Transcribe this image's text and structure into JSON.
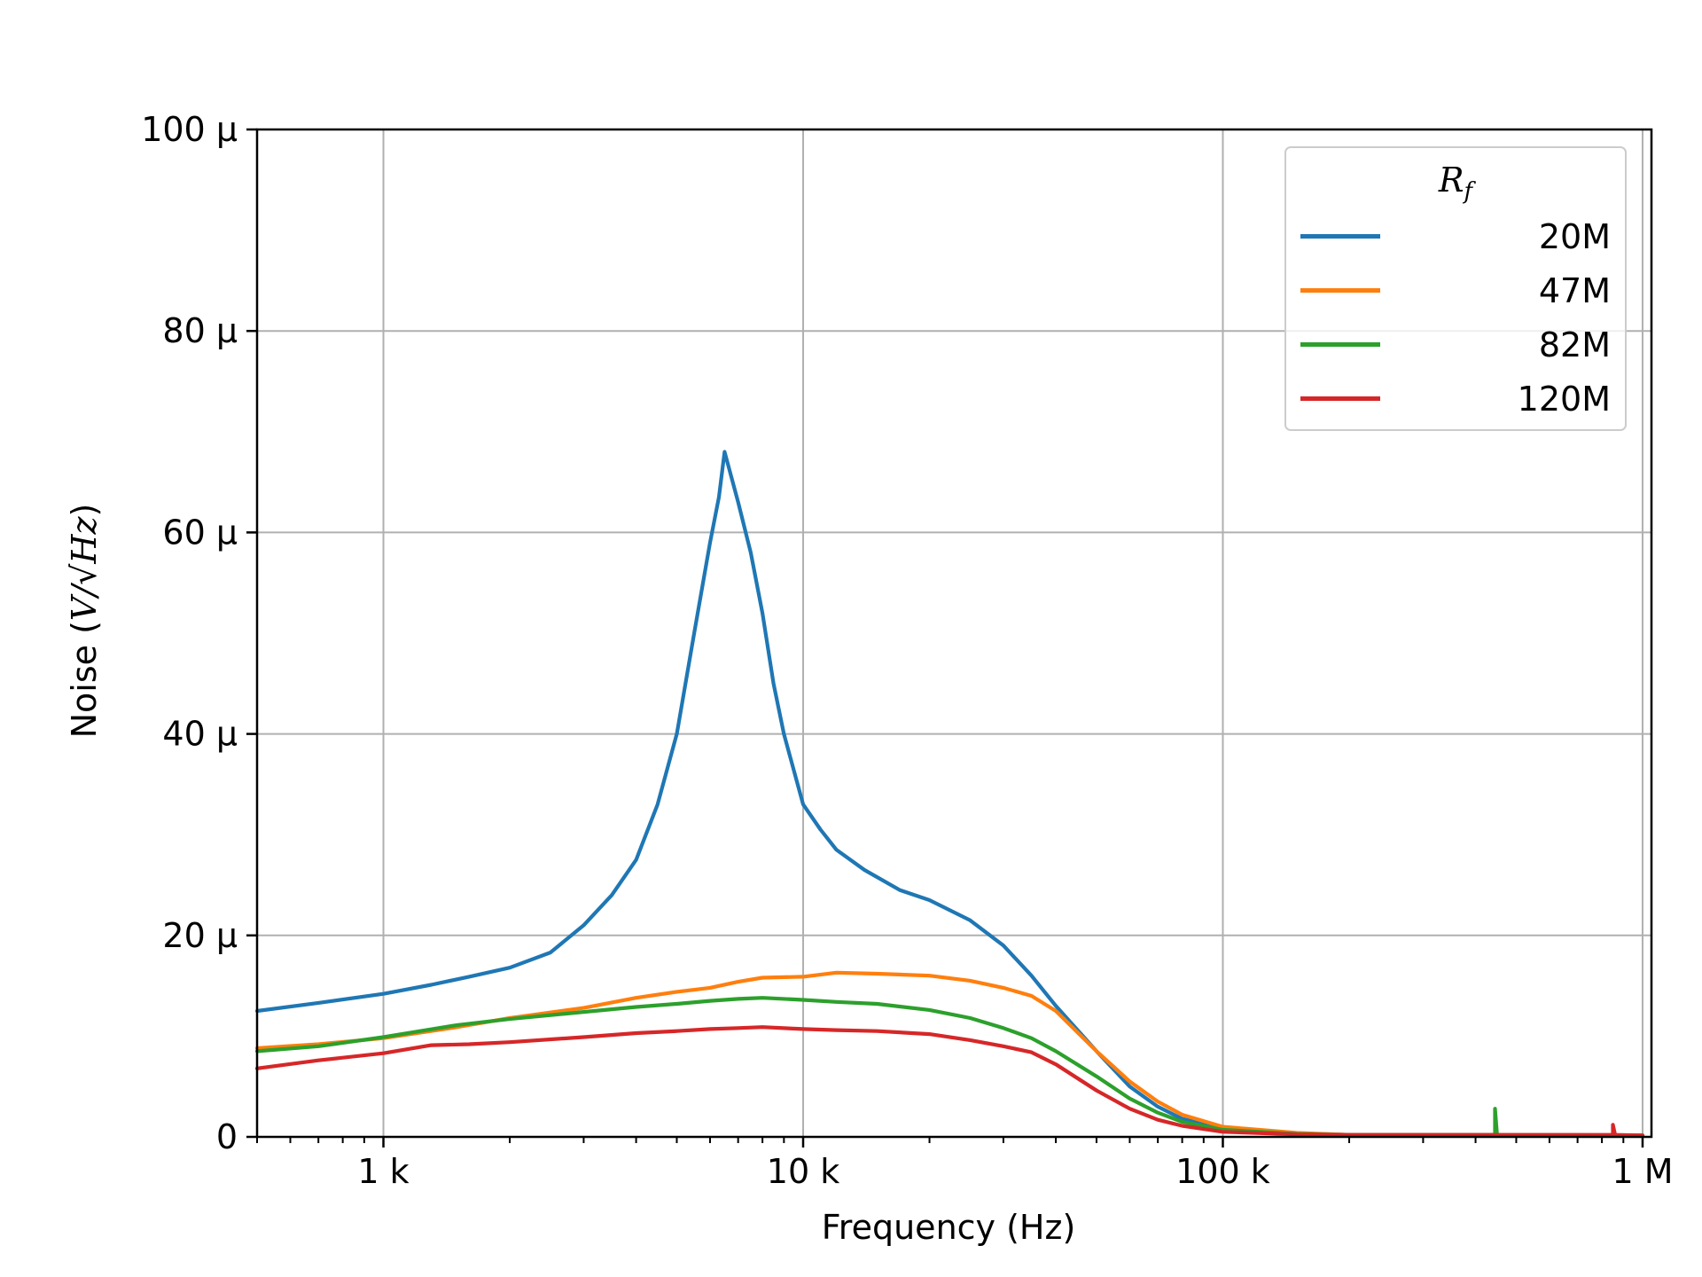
{
  "chart_data": {
    "type": "line",
    "xlabel": "Frequency (Hz)",
    "ylabel_prefix": "Noise (",
    "ylabel_unit": "V/√Hz",
    "ylabel_suffix": ")",
    "x_scale": "log",
    "xlim": [
      500,
      1050000
    ],
    "ylim": [
      0,
      100
    ],
    "y_unit_note": "μV/√Hz",
    "grid": true,
    "x_ticks": [
      {
        "value": 1000,
        "label": "1 k"
      },
      {
        "value": 10000,
        "label": "10 k"
      },
      {
        "value": 100000,
        "label": "100 k"
      },
      {
        "value": 1000000,
        "label": "1 M"
      }
    ],
    "y_ticks": [
      {
        "value": 0,
        "label": "0"
      },
      {
        "value": 20,
        "label": "20 μ"
      },
      {
        "value": 40,
        "label": "40 μ"
      },
      {
        "value": 60,
        "label": "60 μ"
      },
      {
        "value": 80,
        "label": "80 μ"
      },
      {
        "value": 100,
        "label": "100 μ"
      }
    ],
    "legend": {
      "title_main": "R",
      "title_sub": "f",
      "placement": "top-right"
    },
    "series": [
      {
        "name": "20M",
        "color": "#1f77b4",
        "x": [
          500,
          700,
          1000,
          1300,
          1600,
          2000,
          2500,
          3000,
          3500,
          4000,
          4500,
          5000,
          5500,
          6000,
          6300,
          6500,
          7000,
          7500,
          8000,
          8500,
          9000,
          10000,
          11000,
          12000,
          14000,
          17000,
          20000,
          25000,
          30000,
          35000,
          40000,
          50000,
          60000,
          70000,
          80000,
          100000,
          150000,
          200000,
          1000000
        ],
        "y": [
          12.5,
          13.3,
          14.2,
          15.1,
          15.9,
          16.8,
          18.3,
          21.0,
          24.0,
          27.5,
          33.0,
          40.0,
          50.0,
          59.0,
          63.5,
          68.0,
          63.0,
          58.0,
          52.0,
          45.0,
          40.0,
          33.0,
          30.5,
          28.5,
          26.5,
          24.5,
          23.5,
          21.5,
          19.0,
          16.0,
          13.0,
          8.5,
          5.0,
          3.0,
          1.8,
          0.8,
          0.35,
          0.2,
          0.15
        ]
      },
      {
        "name": "47M",
        "color": "#ff7f0e",
        "x": [
          500,
          700,
          1000,
          1500,
          2000,
          3000,
          4000,
          5000,
          6000,
          7000,
          8000,
          10000,
          12000,
          15000,
          20000,
          25000,
          30000,
          35000,
          40000,
          50000,
          60000,
          70000,
          80000,
          100000,
          150000,
          200000,
          1000000
        ],
        "y": [
          8.8,
          9.2,
          9.8,
          10.9,
          11.8,
          12.8,
          13.8,
          14.4,
          14.8,
          15.4,
          15.8,
          15.9,
          16.3,
          16.2,
          16.0,
          15.5,
          14.8,
          14.0,
          12.5,
          8.5,
          5.5,
          3.5,
          2.2,
          1.0,
          0.4,
          0.2,
          0.15
        ]
      },
      {
        "name": "82M",
        "color": "#2ca02c",
        "x": [
          500,
          700,
          1000,
          1500,
          2000,
          3000,
          4000,
          5000,
          6000,
          7000,
          8000,
          10000,
          12000,
          15000,
          20000,
          25000,
          30000,
          35000,
          40000,
          50000,
          60000,
          70000,
          80000,
          100000,
          150000,
          200000,
          445000,
          445000,
          450000,
          1000000
        ],
        "y": [
          8.5,
          9.0,
          9.9,
          11.1,
          11.7,
          12.4,
          12.9,
          13.2,
          13.5,
          13.7,
          13.8,
          13.6,
          13.4,
          13.2,
          12.6,
          11.8,
          10.8,
          9.8,
          8.5,
          6.0,
          3.8,
          2.4,
          1.5,
          0.7,
          0.3,
          0.2,
          0.2,
          2.8,
          0.2,
          0.15
        ]
      },
      {
        "name": "120M",
        "color": "#d62728",
        "x": [
          500,
          700,
          1000,
          1300,
          1600,
          2000,
          3000,
          4000,
          5000,
          6000,
          7000,
          8000,
          10000,
          12000,
          15000,
          20000,
          25000,
          30000,
          35000,
          40000,
          50000,
          60000,
          70000,
          80000,
          100000,
          150000,
          200000,
          850000,
          850000,
          860000,
          1000000
        ],
        "y": [
          6.8,
          7.6,
          8.3,
          9.1,
          9.2,
          9.4,
          9.9,
          10.3,
          10.5,
          10.7,
          10.8,
          10.9,
          10.7,
          10.6,
          10.5,
          10.2,
          9.6,
          9.0,
          8.4,
          7.2,
          4.6,
          2.8,
          1.7,
          1.1,
          0.5,
          0.25,
          0.2,
          0.2,
          1.2,
          0.2,
          0.15
        ]
      }
    ]
  }
}
